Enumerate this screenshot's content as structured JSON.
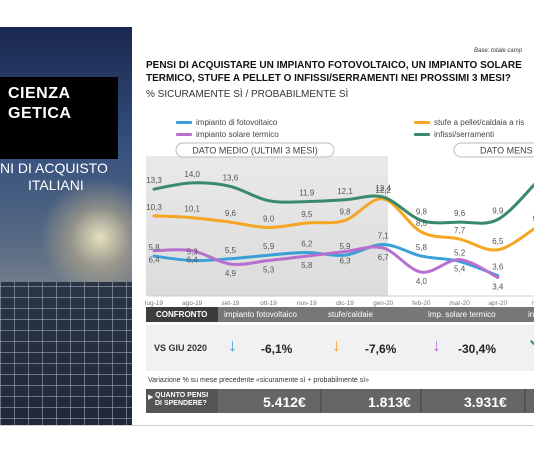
{
  "left_panel": {
    "title_line1": "CIENZA",
    "title_line2": "GETICA",
    "sub_line1": "NI DI ACQUISTO",
    "sub_line2": "ITALIANI"
  },
  "header": {
    "base_note": "Base: totale camp",
    "title_line1": "PENSI DI ACQUISTARE UN IMPIANTO FOTOVOLTAICO, UN IMPIANTO SOLARE",
    "title_line2": "TERMICO,  STUFE A PELLET O INFISSI/SERRAMENTI NEI PROSSIMI 3 MESI?",
    "subtitle": "% SICURAMENTE SÌ / PROBABILMENTE SÌ"
  },
  "chart_data": {
    "type": "line",
    "categories": [
      "lug-19",
      "ago-19",
      "set-19",
      "ott-19",
      "nov-19",
      "dic-19",
      "gen-20",
      "feb-20",
      "mar-20",
      "apr-20",
      "ma"
    ],
    "section_labels": [
      "DATO MEDIO (ULTIMI 3 MESI)",
      "DATO MENS"
    ],
    "ylim": [
      2,
      16
    ],
    "grid": false,
    "legend_position": "top",
    "series": [
      {
        "name": "impianto di fotovoltaico",
        "color": "#3aa0d8",
        "values": [
          5.8,
          5.3,
          5.5,
          5.9,
          6.2,
          5.9,
          7.1,
          5.8,
          5.2,
          3.6,
          null
        ],
        "labels": [
          "5,8",
          "5,3",
          "5,5",
          "5,9",
          "6,2",
          "5,9",
          "7,1",
          "5,8",
          "5,2",
          "3,6",
          ""
        ]
      },
      {
        "name": "impianto solare termico",
        "color": "#b86fce",
        "values": [
          6.4,
          6.4,
          4.9,
          5.3,
          5.8,
          6.3,
          6.7,
          4.0,
          5.4,
          3.4,
          null
        ],
        "labels": [
          "6,4",
          "6,4",
          "4,9",
          "5,3",
          "5,8",
          "6,3",
          "6,7",
          "4,0",
          "5,4",
          "3,4",
          ""
        ]
      },
      {
        "name": "stufe a pellet/caldaia a ris",
        "color": "#f5a623",
        "values": [
          10.3,
          10.1,
          9.6,
          9.0,
          9.5,
          9.8,
          12.2,
          8.5,
          7.7,
          6.5,
          9.0
        ],
        "labels": [
          "10,3",
          "10,1",
          "9,6",
          "9,0",
          "9,5",
          "9,8",
          "12,2",
          "8,5",
          "7,7",
          "6,5",
          "9,"
        ]
      },
      {
        "name": "infissi/serramenti",
        "color": "#3a8a6a",
        "values": [
          13.3,
          14.0,
          13.6,
          12.0,
          11.9,
          12.1,
          12.4,
          9.8,
          9.6,
          9.9,
          14.0
        ],
        "labels": [
          "13,3",
          "14,0",
          "13,6",
          "",
          "11,9",
          "12,1",
          "12,4",
          "9,8",
          "9,6",
          "9,9",
          "1"
        ]
      }
    ]
  },
  "confronto": {
    "header": "CONFRONTO",
    "columns": [
      "impianto fotovoltaico",
      "stufe/caldaie",
      "imp. solare termico",
      "in"
    ],
    "row_label": "VS GIU 2020",
    "values": [
      "-6,1%",
      "-7,6%",
      "-30,4%"
    ],
    "colors": [
      "#3aa0d8",
      "#f5a623",
      "#b86fce",
      "#3a8a6a"
    ]
  },
  "footnote": "Variazione % su mese precedente «sicuramente sì + probabilmente sì»",
  "spend": {
    "label_line1": "QUANTO PENSI",
    "label_line2": "DI SPENDERE?",
    "values": [
      "5.412€",
      "1.813€",
      "3.931€"
    ]
  }
}
